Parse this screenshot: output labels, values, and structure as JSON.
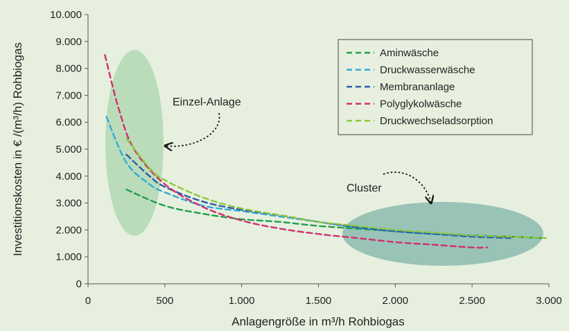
{
  "chart_data": {
    "type": "line",
    "xlabel": "Anlagengröße in m³/h Rohbiogas",
    "ylabel": "Investitionskosten in € /(m³/h) Rohbiogas",
    "xlim": [
      0,
      3000
    ],
    "ylim": [
      0,
      10000
    ],
    "x_ticks": [
      "0",
      "500",
      "1.000",
      "1.500",
      "2.000",
      "2.500",
      "3.000"
    ],
    "y_ticks": [
      "0",
      "1.000",
      "2.000",
      "3.000",
      "4.000",
      "5.000",
      "6.000",
      "7.000",
      "8.000",
      "9.000",
      "10.000"
    ],
    "grid": "none",
    "legend_position": "top-right",
    "series": [
      {
        "name": "Aminwäsche",
        "color": "#1f9e4a",
        "x": [
          250,
          500,
          750,
          1000,
          1250,
          1500,
          1750,
          2000,
          2250,
          2500,
          2750,
          2950
        ],
        "y": [
          3500,
          2900,
          2600,
          2400,
          2300,
          2150,
          2050,
          1950,
          1850,
          1800,
          1750,
          1700
        ]
      },
      {
        "name": "Druckwasserwäsche",
        "color": "#35a9d6",
        "x": [
          120,
          250,
          400,
          500,
          750,
          1000,
          1250,
          1500,
          1750,
          2000,
          2250,
          2500,
          2700
        ],
        "y": [
          6200,
          4500,
          3700,
          3400,
          2900,
          2700,
          2500,
          2300,
          2100,
          1950,
          1850,
          1800,
          1750
        ]
      },
      {
        "name": "Membrananlage",
        "color": "#2a5ea8",
        "x": [
          250,
          400,
          500,
          750,
          1000,
          1250,
          1500,
          1750,
          2000,
          2250,
          2500,
          2750
        ],
        "y": [
          4800,
          4000,
          3600,
          3050,
          2750,
          2550,
          2300,
          2100,
          1950,
          1850,
          1750,
          1700
        ]
      },
      {
        "name": "Polyglykolwäsche",
        "color": "#cf2f6e",
        "x": [
          110,
          200,
          300,
          500,
          750,
          1000,
          1250,
          1500,
          1750,
          2000,
          2250,
          2500,
          2600
        ],
        "y": [
          8500,
          6500,
          5000,
          3700,
          2850,
          2350,
          2050,
          1850,
          1700,
          1550,
          1450,
          1350,
          1350
        ]
      },
      {
        "name": "Druckwechseladsorption",
        "color": "#8fc63a",
        "x": [
          250,
          400,
          500,
          750,
          1000,
          1250,
          1500,
          1750,
          2000,
          2250,
          2500,
          2750,
          2980
        ],
        "y": [
          5400,
          4300,
          3850,
          3200,
          2800,
          2550,
          2300,
          2150,
          2000,
          1900,
          1800,
          1750,
          1700
        ]
      }
    ],
    "annotations": {
      "single": "Einzel-Anlage",
      "cluster": "Cluster"
    }
  }
}
